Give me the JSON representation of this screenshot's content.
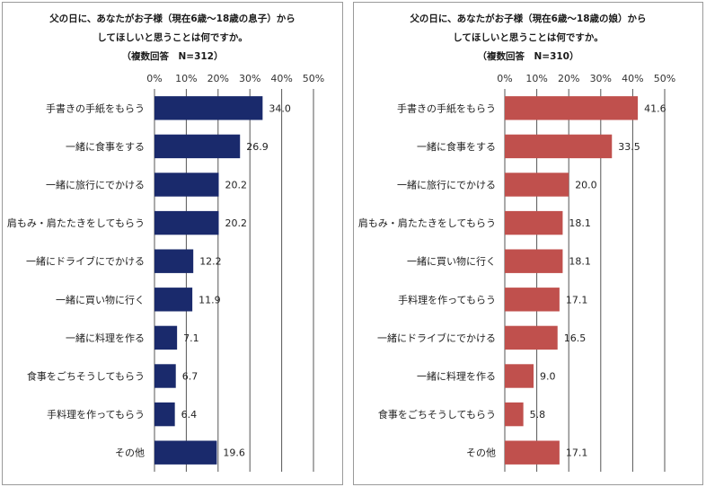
{
  "chart_data": [
    {
      "type": "bar",
      "orientation": "horizontal",
      "title_lines": [
        "父の日に、あなたがお子様（現在6歳～18歳の息子）から",
        "してほしいと思うことは何ですか。",
        "（複数回答　N=312）"
      ],
      "categories": [
        "手書きの手紙をもらう",
        "一緒に食事をする",
        "一緒に旅行にでかける",
        "肩もみ・肩たたきをしてもらう",
        "一緒にドライブにでかける",
        "一緒に買い物に行く",
        "一緒に料理を作る",
        "食事をごちそうしてもらう",
        "手料理を作ってもらう",
        "その他"
      ],
      "values": [
        34.0,
        26.9,
        20.2,
        20.2,
        12.2,
        11.9,
        7.1,
        6.7,
        6.4,
        19.6
      ],
      "value_labels": [
        "34.0",
        "26.9",
        "20.2",
        "20.2",
        "12.2",
        "11.9",
        "7.1",
        "6.7",
        "6.4",
        "19.6"
      ],
      "xlim": [
        0,
        50
      ],
      "ticks": [
        "0%",
        "10%",
        "20%",
        "30%",
        "40%",
        "50%"
      ],
      "grid": true,
      "bar_color": "#1a2a6c"
    },
    {
      "type": "bar",
      "orientation": "horizontal",
      "title_lines": [
        "父の日に、あなたがお子様（現在6歳～18歳の娘）から",
        "してほしいと思うことは何ですか。",
        "（複数回答　N=310）"
      ],
      "categories": [
        "手書きの手紙をもらう",
        "一緒に食事をする",
        "一緒に旅行にでかける",
        "肩もみ・肩たたきをしてもらう",
        "一緒に買い物に行く",
        "手料理を作ってもらう",
        "一緒にドライブにでかける",
        "一緒に料理を作る",
        "食事をごちそうしてもらう",
        "その他"
      ],
      "values": [
        41.6,
        33.5,
        20.0,
        18.1,
        18.1,
        17.1,
        16.5,
        9.0,
        5.8,
        17.1
      ],
      "value_labels": [
        "41.6",
        "33.5",
        "20.0",
        "18.1",
        "18.1",
        "17.1",
        "16.5",
        "9.0",
        "5.8",
        "17.1"
      ],
      "xlim": [
        0,
        50
      ],
      "ticks": [
        "0%",
        "10%",
        "20%",
        "30%",
        "40%",
        "50%"
      ],
      "grid": true,
      "bar_color": "#c0504d"
    }
  ]
}
